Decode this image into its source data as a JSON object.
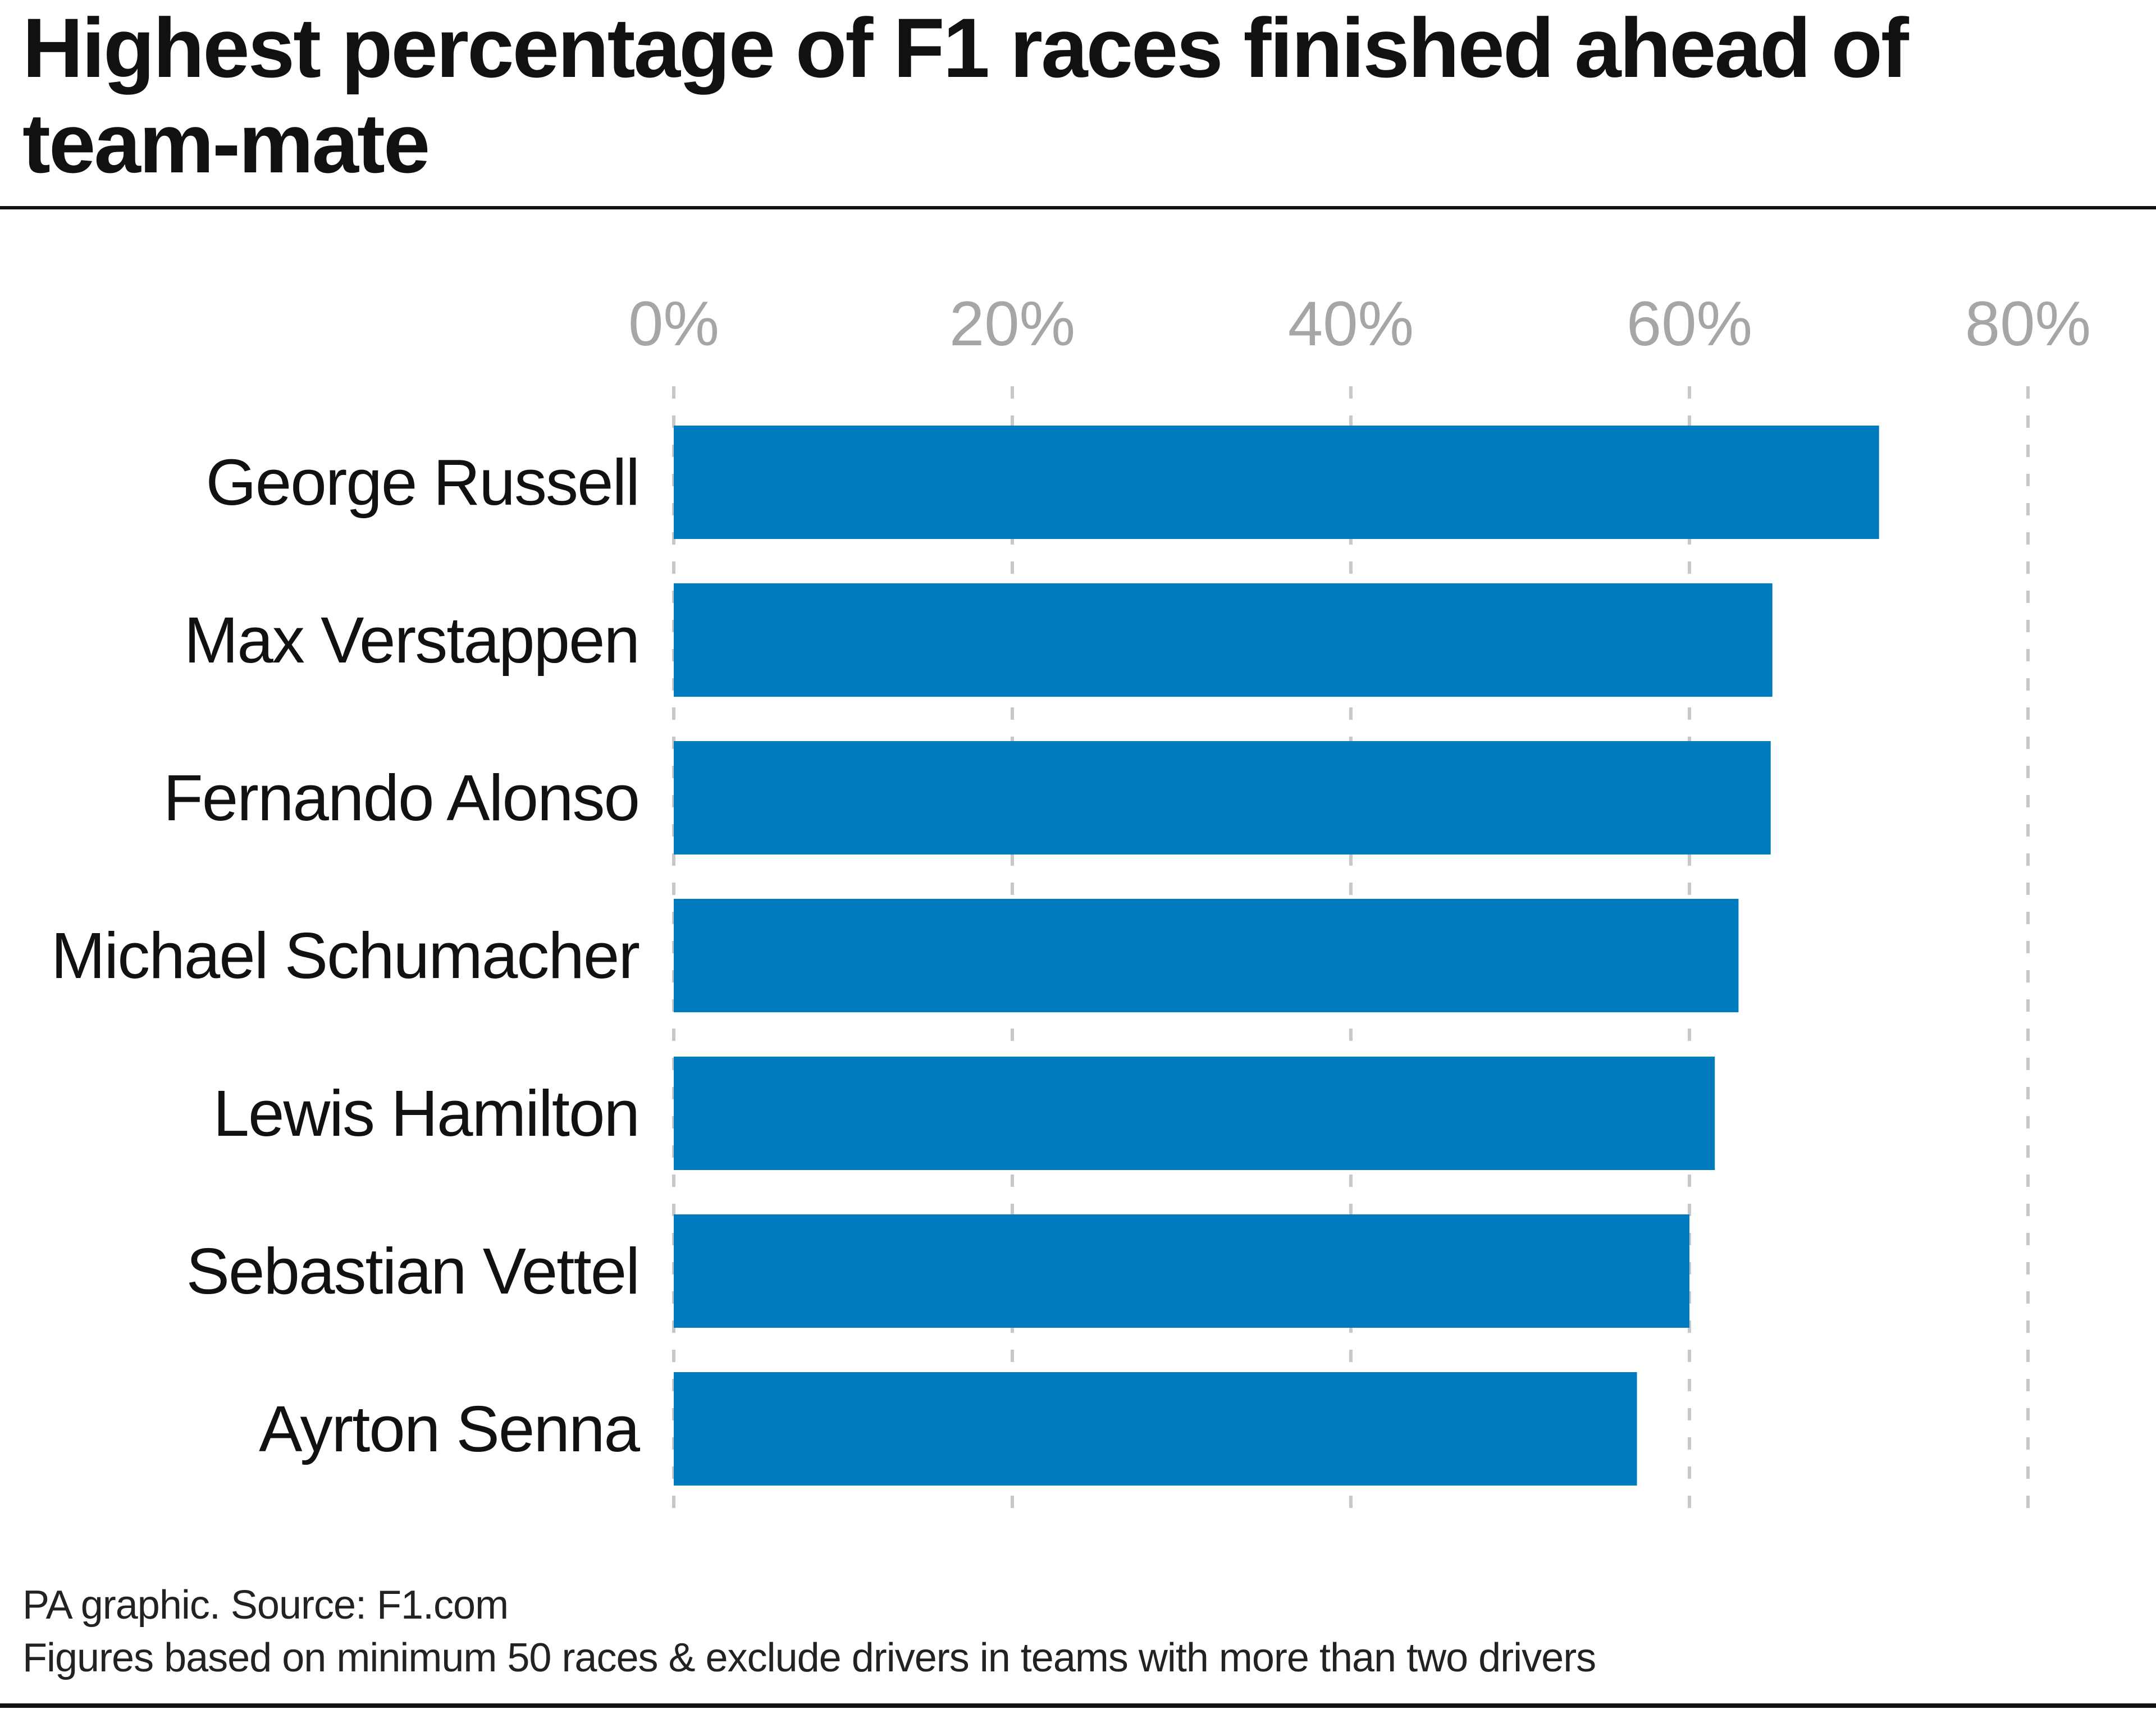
{
  "title": "Highest percentage of F1 races finished ahead of team-mate",
  "footer": {
    "source": "PA graphic. Source: F1.com",
    "note": "Figures based on minimum 50 races & exclude drivers in teams with more than two drivers"
  },
  "chart_data": {
    "type": "bar",
    "orientation": "horizontal",
    "categories": [
      "George Russell",
      "Max Verstappen",
      "Fernando Alonso",
      "Michael Schumacher",
      "Lewis Hamilton",
      "Sebastian Vettel",
      "Ayrton Senna"
    ],
    "values": [
      71.2,
      64.9,
      64.8,
      62.9,
      61.5,
      60.0,
      56.9
    ],
    "unit": "%",
    "xlim": [
      0,
      80
    ],
    "xticks": [
      0,
      20,
      40,
      60,
      80
    ],
    "xtick_labels": [
      "0%",
      "20%",
      "40%",
      "60%",
      "80%"
    ],
    "grid": "vertical dashed",
    "legend": "none",
    "colors": {
      "bar": "#007bbd",
      "grid": "#c8c8c8",
      "tick_label": "#a6a6a6",
      "category_label": "#111111"
    }
  }
}
